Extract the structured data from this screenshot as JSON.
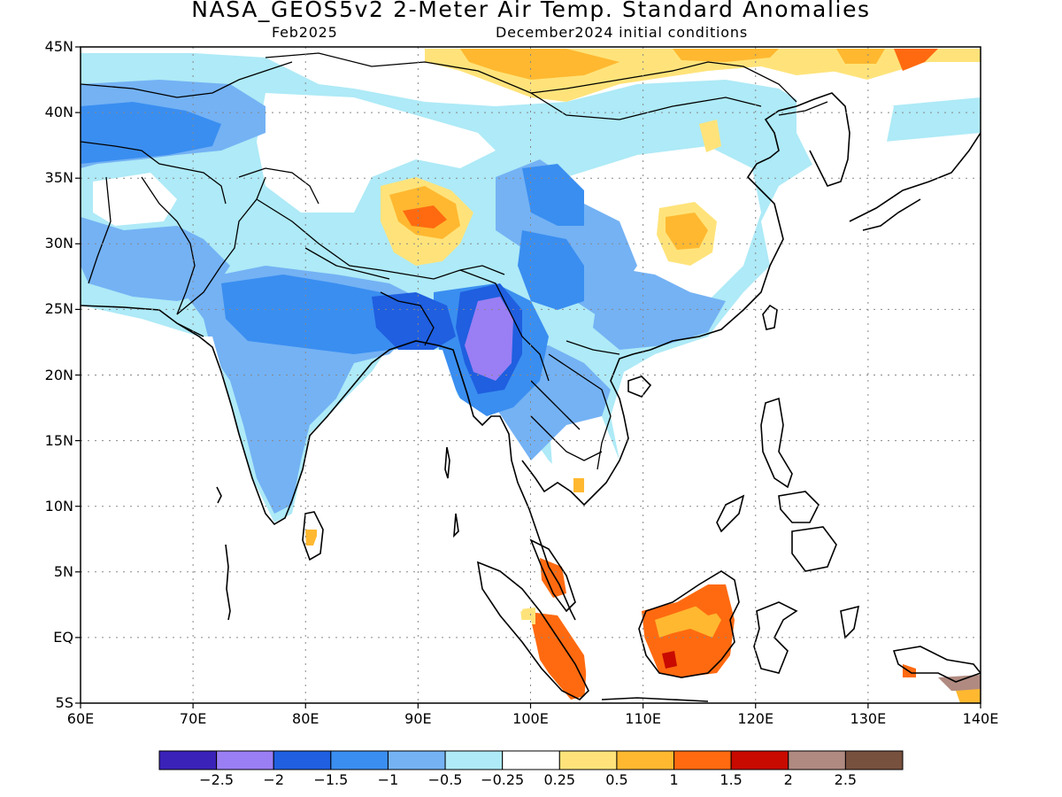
{
  "title": "NASA_GEOS5v2 2-Meter Air Temp. Standard Anomalies",
  "subtitle_left": "Feb2025",
  "subtitle_right": "December2024 initial conditions",
  "lat_labels": [
    "45N",
    "40N",
    "35N",
    "30N",
    "25N",
    "20N",
    "15N",
    "10N",
    "5N",
    "EQ",
    "5S"
  ],
  "lon_labels": [
    "60E",
    "70E",
    "80E",
    "90E",
    "100E",
    "110E",
    "120E",
    "130E",
    "140E"
  ],
  "colorbar": {
    "colors": [
      "#3a22b8",
      "#9a7ef4",
      "#1f5fe0",
      "#3a8ef0",
      "#74b2f4",
      "#aeeaf7",
      "#ffffff",
      "#ffe37a",
      "#ffb830",
      "#ff6a10",
      "#c80a00",
      "#b08a80",
      "#78503e"
    ],
    "labels": [
      "-2.5",
      "-2",
      "-1.5",
      "-1",
      "-0.5",
      "-0.25",
      "0.25",
      "0.5",
      "1",
      "1.5",
      "2",
      "2.5"
    ]
  },
  "map_extent": {
    "lon_min": 60,
    "lon_max": 140,
    "lat_min": -5,
    "lat_max": 45
  }
}
